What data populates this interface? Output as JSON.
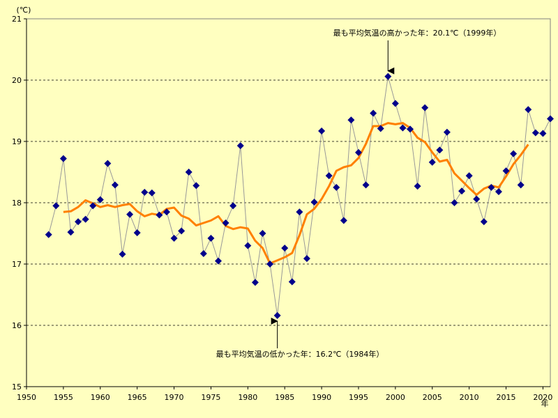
{
  "chart_data": {
    "type": "line",
    "unit_label": "(℃)",
    "x_unit_label": "年",
    "xlim": [
      1950,
      2021
    ],
    "ylim": [
      15,
      21
    ],
    "y_ticks": [
      15,
      16,
      17,
      18,
      19,
      20,
      21
    ],
    "x_ticks": [
      1950,
      1955,
      1960,
      1965,
      1970,
      1975,
      1980,
      1985,
      1990,
      1995,
      2000,
      2005,
      2010,
      2015,
      2020
    ],
    "grid": "horizontal-dashed",
    "colors": {
      "annual": "#00008B",
      "annual_line": "#999999",
      "moving_avg": "#FF8000",
      "background": "#FFFFC0"
    },
    "series": [
      {
        "marker": "diamond",
        "x": [
          1953,
          1954,
          1955,
          1956,
          1957,
          1958,
          1959,
          1960,
          1961,
          1962,
          1963,
          1964,
          1965,
          1966,
          1967,
          1968,
          1969,
          1970,
          1971,
          1972,
          1973,
          1974,
          1975,
          1976,
          1977,
          1978,
          1979,
          1980,
          1981,
          1982,
          1983,
          1984,
          1985,
          1986,
          1987,
          1988,
          1989,
          1990,
          1991,
          1992,
          1993,
          1994,
          1995,
          1996,
          1997,
          1998,
          1999,
          2000,
          2001,
          2002,
          2003,
          2004,
          2005,
          2006,
          2007,
          2008,
          2009,
          2010,
          2011,
          2012,
          2013,
          2014,
          2015,
          2016,
          2017,
          2018,
          2019,
          2020,
          2021
        ],
        "values": [
          17.48,
          17.95,
          18.72,
          17.52,
          17.69,
          17.73,
          17.95,
          18.05,
          18.64,
          18.29,
          17.16,
          17.81,
          17.51,
          18.17,
          18.16,
          17.8,
          17.85,
          17.42,
          17.54,
          18.5,
          18.28,
          17.17,
          17.42,
          17.05,
          17.67,
          17.95,
          18.93,
          17.3,
          16.7,
          17.5,
          17.0,
          16.16,
          17.26,
          16.71,
          17.85,
          17.09,
          18.01,
          19.17,
          18.44,
          18.25,
          17.71,
          19.35,
          18.82,
          18.29,
          19.46,
          19.21,
          20.06,
          19.62,
          19.22,
          19.2,
          18.27,
          19.55,
          18.66,
          18.86,
          19.15,
          18.0,
          18.19,
          18.44,
          18.06,
          17.69,
          18.25,
          18.18,
          18.52,
          18.8,
          18.29,
          19.52,
          19.14,
          19.13,
          19.37
        ]
      },
      {
        "marker": "none",
        "x": [
          1955,
          1956,
          1957,
          1958,
          1959,
          1960,
          1961,
          1962,
          1963,
          1964,
          1965,
          1966,
          1967,
          1968,
          1969,
          1970,
          1971,
          1972,
          1973,
          1974,
          1975,
          1976,
          1977,
          1978,
          1979,
          1980,
          1981,
          1982,
          1983,
          1984,
          1985,
          1986,
          1987,
          1988,
          1989,
          1990,
          1991,
          1992,
          1993,
          1994,
          1995,
          1996,
          1997,
          1998,
          1999,
          2000,
          2001,
          2002,
          2003,
          2004,
          2005,
          2006,
          2007,
          2008,
          2009,
          2010,
          2011,
          2012,
          2013,
          2014,
          2015,
          2016,
          2017,
          2018
        ],
        "values": [
          17.85,
          17.86,
          17.93,
          18.04,
          17.99,
          17.93,
          17.96,
          17.93,
          17.96,
          17.98,
          17.86,
          17.78,
          17.82,
          17.8,
          17.9,
          17.92,
          17.79,
          17.74,
          17.63,
          17.67,
          17.71,
          17.78,
          17.62,
          17.57,
          17.6,
          17.58,
          17.38,
          17.26,
          17.01,
          17.06,
          17.11,
          17.18,
          17.47,
          17.81,
          17.9,
          18.06,
          18.27,
          18.52,
          18.58,
          18.61,
          18.73,
          18.96,
          19.25,
          19.25,
          19.3,
          19.28,
          19.3,
          19.22,
          19.06,
          18.99,
          18.82,
          18.67,
          18.7,
          18.48,
          18.36,
          18.24,
          18.13,
          18.23,
          18.28,
          18.25,
          18.43,
          18.63,
          18.78,
          18.95
        ]
      }
    ],
    "annotations": [
      {
        "text": "最も平均気温の高かった年：20.1℃（1999年）",
        "x": 1999,
        "y": 20.06,
        "position": "above"
      },
      {
        "text": "最も平均気温の低かった年：16.2℃（1984年）",
        "x": 1984,
        "y": 16.16,
        "position": "below"
      }
    ]
  }
}
